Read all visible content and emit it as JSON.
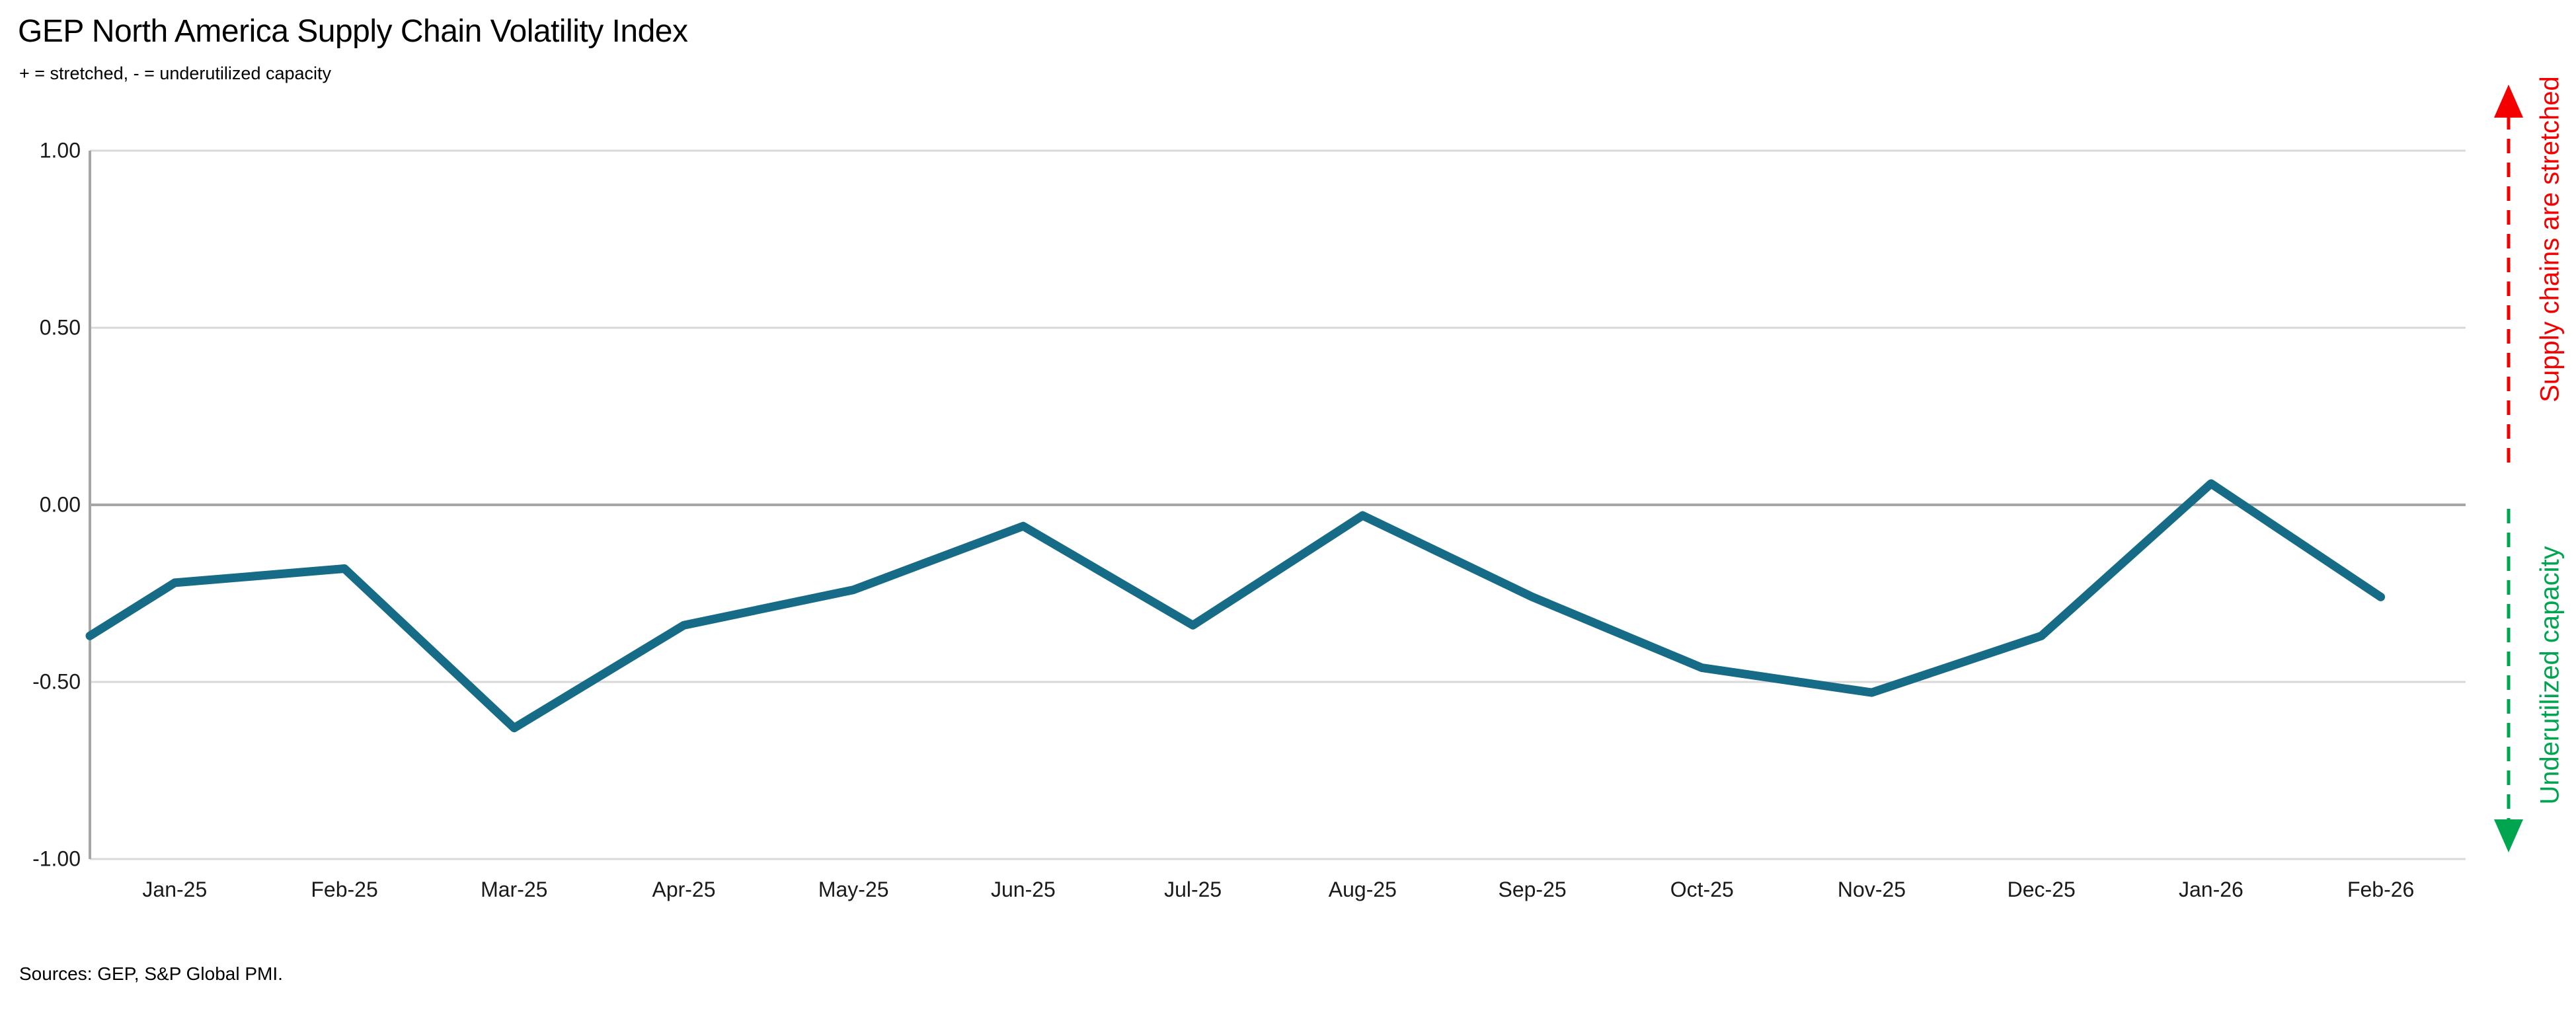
{
  "header": {
    "title": "GEP North America Supply Chain Volatility Index",
    "subtitle": "+ = stretched, - = underutilized capacity"
  },
  "footer": {
    "source_note": "Sources: GEP, S&P Global PMI."
  },
  "annotations": {
    "stretched": {
      "label": "Supply chains are stretched",
      "color": "#f40000",
      "arrow_direction": "up"
    },
    "underutilized": {
      "label": "Underutilized capacity",
      "color": "#00a64f",
      "arrow_direction": "down"
    }
  },
  "chart_data": {
    "type": "line",
    "title": "GEP North America Supply Chain Volatility Index",
    "categories": [
      "Jan-25",
      "Feb-25",
      "Mar-25",
      "Apr-25",
      "May-25",
      "Jun-25",
      "Jul-25",
      "Aug-25",
      "Sep-25",
      "Oct-25",
      "Nov-25",
      "Dec-25",
      "Jan-26",
      "Feb-26"
    ],
    "values": [
      -0.22,
      -0.18,
      -0.63,
      -0.34,
      -0.24,
      -0.06,
      -0.34,
      -0.03,
      -0.26,
      -0.46,
      -0.53,
      -0.37,
      0.06,
      -0.26
    ],
    "left_edge_entry_value": -0.37,
    "ylim": [
      -1.0,
      1.0
    ],
    "y_tick_values": [
      1.0,
      0.5,
      0.0,
      -0.5,
      -1.0
    ],
    "y_tick_labels": [
      "1.00",
      "0.50",
      "0.00",
      "-0.50",
      "-1.00"
    ],
    "xlabel": "",
    "ylabel": "",
    "grid": true,
    "legend": "none",
    "colors": {
      "line": "#166c87",
      "zero_line": "#a6a6a6",
      "gridline": "#d9d9d9",
      "axis_line": "#a6a6a6",
      "tick_text": "#1a1a1a"
    }
  }
}
